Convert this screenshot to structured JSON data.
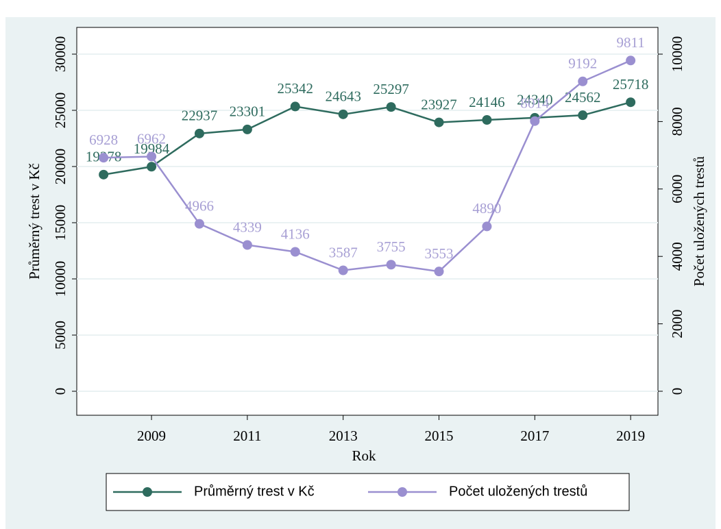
{
  "chart_data": {
    "type": "line",
    "x": [
      2008,
      2009,
      2010,
      2011,
      2012,
      2013,
      2014,
      2015,
      2016,
      2017,
      2018,
      2019
    ],
    "xlabel": "Rok",
    "ylabel": "Průměrný trest v Kč",
    "y2label": "Počet uložených trestů",
    "xlim": [
      2007.44,
      2019.57
    ],
    "xticks": [
      2009,
      2011,
      2013,
      2015,
      2017,
      2019
    ],
    "ylim": [
      -2134,
      32378
    ],
    "yticks": [
      0,
      5000,
      10000,
      15000,
      20000,
      25000,
      30000
    ],
    "y2lim": [
      -712,
      10793
    ],
    "y2ticks": [
      0,
      2000,
      4000,
      6000,
      8000,
      10000
    ],
    "grid": true,
    "legend": "bottom",
    "series": [
      {
        "name": "Průměrný trest v Kč",
        "color": "#2e6b5e",
        "label_color": "#2e6b5e",
        "values": [
          19278,
          19984,
          22937,
          23301,
          25342,
          24643,
          25297,
          23927,
          24146,
          24340,
          24562,
          25718
        ]
      },
      {
        "name": "Počet uložených trestů",
        "color": "#9a8fd0",
        "label_color": "#a79fd4",
        "axis": "y2",
        "values": [
          6928,
          6962,
          4966,
          4339,
          4136,
          3587,
          3755,
          3553,
          4890,
          8014,
          9192,
          9811
        ]
      }
    ]
  }
}
